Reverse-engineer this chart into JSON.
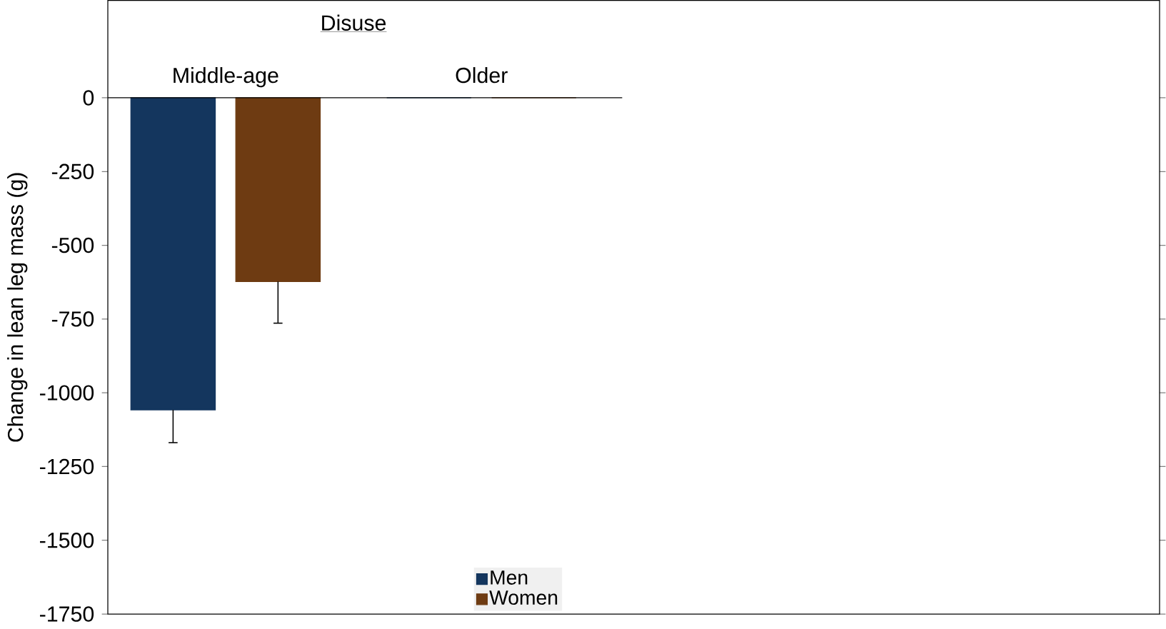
{
  "chart_data": {
    "type": "bar",
    "title": "Disuse",
    "ylabel": "Change in lean leg mass (g)",
    "categories": [
      "Middle-age",
      "Older"
    ],
    "series": [
      {
        "name": "Men",
        "color": "#14365e",
        "values": [
          -1058,
          0
        ],
        "errors": [
          [
            -1169,
            -1058
          ],
          null
        ]
      },
      {
        "name": "Women",
        "color": "#6e3b12",
        "values": [
          -623,
          0
        ],
        "errors": [
          [
            -764,
            -623
          ],
          null
        ]
      }
    ],
    "ylim": [
      -1750,
      330
    ],
    "yticks": [
      0,
      -250,
      -500,
      -750,
      -1000,
      -1250,
      -1500,
      -1750
    ],
    "legend": "bottom"
  }
}
